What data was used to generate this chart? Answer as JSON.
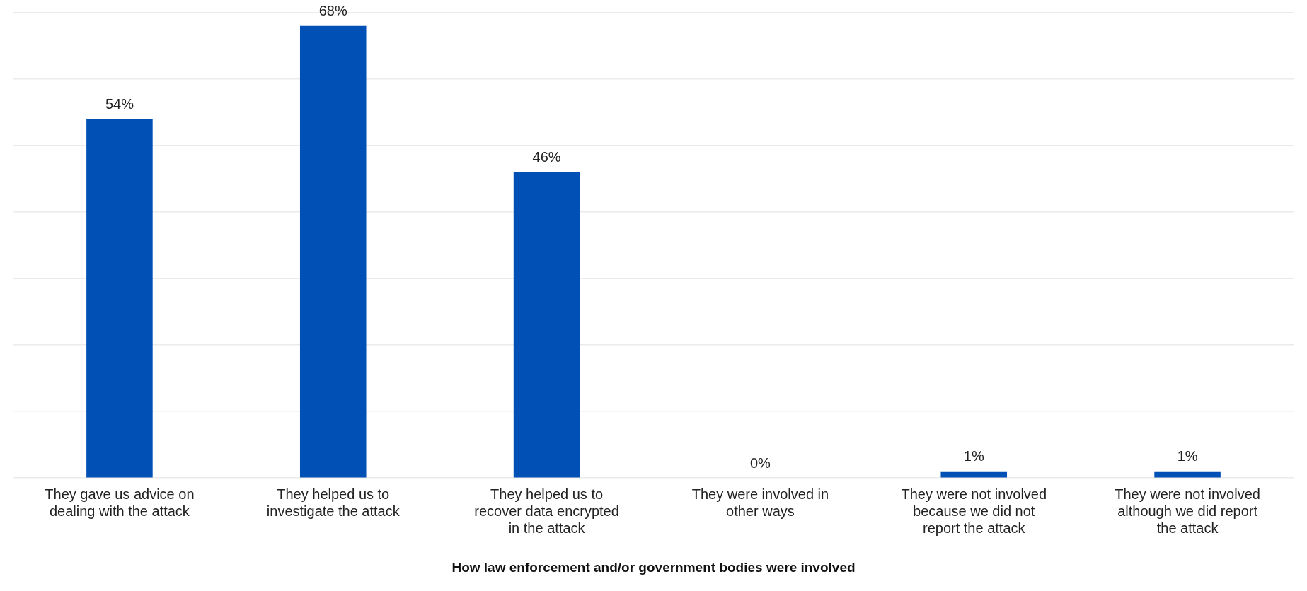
{
  "chart_data": {
    "type": "bar",
    "xlabel": "How law enforcement and/or government bodies were involved",
    "categories": [
      "They gave us advice on dealing with the attack",
      "They helped us to investigate the attack",
      "They helped us to recover data encrypted in the attack",
      "They were involved in other ways",
      "They were not involved because we did not report the attack",
      "They were not involved although we did report the attack"
    ],
    "values": [
      54,
      68,
      46,
      0,
      1,
      1
    ],
    "value_labels": [
      "54%",
      "68%",
      "46%",
      "0%",
      "1%",
      "1%"
    ],
    "color": "#0050b5",
    "ylim": [
      0,
      70
    ],
    "yticks": [
      {
        "value": 0,
        "label": null
      },
      {
        "value": 10,
        "label": null
      },
      {
        "value": 20,
        "label": null
      },
      {
        "value": 30,
        "label": null
      },
      {
        "value": 40,
        "label": null
      },
      {
        "value": 50,
        "label": null
      },
      {
        "value": 60,
        "label": null
      },
      {
        "value": 70,
        "label": null
      }
    ],
    "grid": "y",
    "tick_labels": "x",
    "legend": false
  }
}
